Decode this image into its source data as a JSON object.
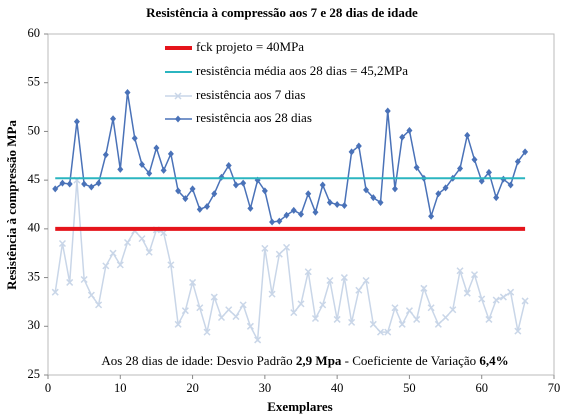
{
  "chart_data": {
    "type": "line",
    "title": "Resistência à compressão aos 7 e 28 dias de idade",
    "x_label": "Exemplares",
    "y_label": "Resistência à compressão MPa",
    "annotation": [
      "Aos 28 dias de idade: Desvio Padrão ",
      "2,9 Mpa",
      " - Coeficiente de Variação ",
      "6,4%"
    ],
    "xlim": [
      0,
      70
    ],
    "xticks": [
      0,
      10,
      20,
      30,
      40,
      50,
      60,
      70
    ],
    "ylim": [
      25,
      60
    ],
    "yticks": [
      25,
      30,
      35,
      40,
      45,
      50,
      55,
      60
    ],
    "series": [
      {
        "name": "fck projeto = 40MPa",
        "color": "#e5141b",
        "x": [
          1,
          66
        ],
        "values": [
          40,
          40
        ]
      },
      {
        "name": "resistência média aos 28 dias = 45,2MPa",
        "color": "#2bb5c0",
        "x": [
          1,
          66
        ],
        "values": [
          45.2,
          45.2
        ]
      },
      {
        "name": "resistência aos 7 dias",
        "color": "#c9d6e8",
        "x": [
          1,
          2,
          3,
          4,
          5,
          6,
          7,
          8,
          9,
          10,
          11,
          12,
          13,
          14,
          15,
          16,
          17,
          18,
          19,
          20,
          21,
          22,
          23,
          24,
          25,
          26,
          27,
          28,
          29,
          30,
          31,
          32,
          33,
          34,
          35,
          36,
          37,
          38,
          39,
          40,
          41,
          42,
          43,
          44,
          45,
          46,
          47,
          48,
          49,
          50,
          51,
          52,
          53,
          54,
          55,
          56,
          57,
          58,
          59,
          60,
          61,
          62,
          63,
          64,
          65,
          66
        ],
        "values": [
          33.5,
          38.5,
          34.5,
          45.0,
          34.8,
          33.2,
          32.2,
          36.2,
          37.5,
          36.3,
          38.6,
          39.8,
          39.0,
          37.6,
          39.9,
          39.6,
          36.3,
          30.2,
          31.6,
          34.5,
          31.9,
          29.4,
          33.0,
          30.9,
          31.7,
          31.0,
          32.2,
          30.0,
          28.6,
          38.0,
          33.3,
          37.4,
          38.1,
          31.4,
          32.3,
          35.6,
          30.8,
          32.2,
          34.7,
          30.7,
          35.0,
          30.4,
          33.7,
          34.7,
          30.2,
          29.4,
          29.4,
          31.9,
          30.2,
          31.6,
          30.7,
          33.9,
          31.9,
          30.2,
          30.9,
          31.7,
          35.7,
          33.4,
          35.3,
          32.8,
          30.7,
          32.7,
          33.0,
          33.5,
          29.5,
          32.6
        ]
      },
      {
        "name": "resistência aos 28 dias",
        "color": "#4a72b8",
        "x": [
          1,
          2,
          3,
          4,
          5,
          6,
          7,
          8,
          9,
          10,
          11,
          12,
          13,
          14,
          15,
          16,
          17,
          18,
          19,
          20,
          21,
          22,
          23,
          24,
          25,
          26,
          27,
          28,
          29,
          30,
          31,
          32,
          33,
          34,
          35,
          36,
          37,
          38,
          39,
          40,
          41,
          42,
          43,
          44,
          45,
          46,
          47,
          48,
          49,
          50,
          51,
          52,
          53,
          54,
          55,
          56,
          57,
          58,
          59,
          60,
          61,
          62,
          63,
          64,
          65,
          66
        ],
        "values": [
          44.1,
          44.7,
          44.6,
          51.0,
          44.6,
          44.3,
          44.7,
          47.6,
          51.3,
          46.1,
          54.0,
          49.3,
          46.6,
          45.7,
          48.3,
          46.0,
          47.7,
          43.9,
          43.1,
          44.1,
          42.0,
          42.3,
          43.6,
          45.3,
          46.5,
          44.5,
          44.7,
          42.1,
          45.0,
          43.9,
          40.7,
          40.8,
          41.4,
          41.9,
          41.5,
          43.6,
          41.7,
          44.5,
          42.7,
          42.5,
          42.4,
          47.9,
          48.5,
          44.0,
          43.2,
          42.7,
          52.1,
          44.1,
          49.4,
          50.1,
          46.3,
          45.2,
          41.3,
          43.6,
          44.2,
          45.2,
          46.2,
          49.6,
          47.1,
          44.9,
          45.8,
          43.2,
          45.1,
          44.5,
          46.9,
          47.9
        ]
      }
    ]
  }
}
